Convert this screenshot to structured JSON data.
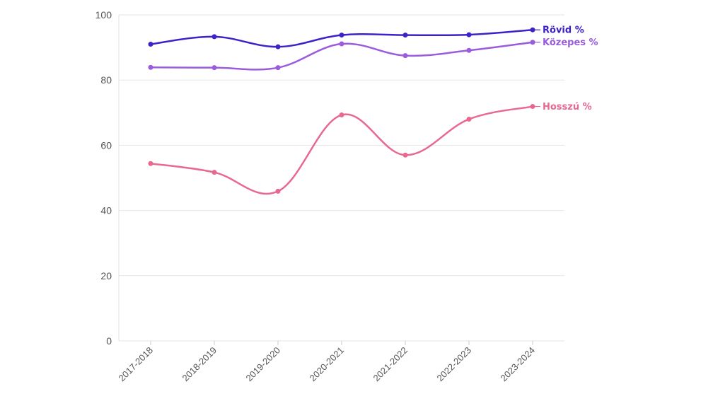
{
  "chart_data": {
    "type": "line",
    "title": "",
    "xlabel": "",
    "ylabel": "",
    "categories": [
      "2017-2018",
      "2018-2019",
      "2019-2020",
      "2020-2021",
      "2021-2022",
      "2022-2023",
      "2023-2024"
    ],
    "ylim": [
      0,
      100
    ],
    "yticks": [
      0,
      20,
      40,
      60,
      80,
      100
    ],
    "grid": true,
    "legend": "end-of-line labels",
    "series": [
      {
        "name": "Rövid %",
        "color": "#3b23c9",
        "values": [
          91.0,
          93.3,
          90.2,
          93.8,
          93.8,
          93.9,
          95.4
        ]
      },
      {
        "name": "Közepes %",
        "color": "#9a5bdc",
        "values": [
          83.9,
          83.8,
          83.8,
          91.1,
          87.5,
          89.1,
          91.6
        ]
      },
      {
        "name": "Hosszú %",
        "color": "#e86890",
        "values": [
          54.4,
          51.7,
          45.9,
          69.3,
          57.0,
          68.0,
          71.9
        ]
      }
    ]
  }
}
